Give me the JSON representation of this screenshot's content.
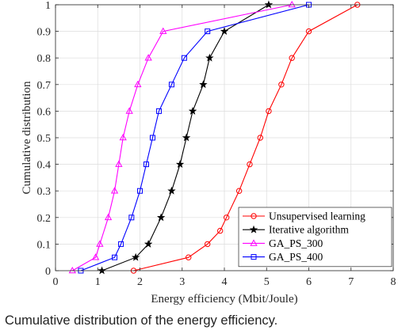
{
  "chart_data": {
    "type": "line",
    "xlabel": "Energy efficiency (Mbit/Joule)",
    "ylabel": "Cumulative distribution",
    "xlim": [
      0,
      8
    ],
    "ylim": [
      0,
      1
    ],
    "xticks": [
      "0",
      "1",
      "2",
      "3",
      "4",
      "5",
      "6",
      "7",
      "8"
    ],
    "yticks": [
      "0",
      "0.1",
      "0.2",
      "0.3",
      "0.4",
      "0.5",
      "0.6",
      "0.7",
      "0.8",
      "0.9",
      "1"
    ],
    "grid": true,
    "legend_position": "bottom-right",
    "series": [
      {
        "name": "Unsupervised learning",
        "color": "#ff0000",
        "marker": "circle",
        "points": [
          [
            1.85,
            0
          ],
          [
            3.15,
            0.05
          ],
          [
            3.6,
            0.1
          ],
          [
            3.9,
            0.15
          ],
          [
            4.05,
            0.2
          ],
          [
            4.35,
            0.3
          ],
          [
            4.6,
            0.4
          ],
          [
            4.85,
            0.5
          ],
          [
            5.05,
            0.6
          ],
          [
            5.35,
            0.7
          ],
          [
            5.6,
            0.8
          ],
          [
            6.0,
            0.9
          ],
          [
            7.15,
            1.0
          ]
        ]
      },
      {
        "name": "Iterative algorithm",
        "color": "#000000",
        "marker": "star",
        "points": [
          [
            1.1,
            0
          ],
          [
            1.9,
            0.05
          ],
          [
            2.2,
            0.1
          ],
          [
            2.5,
            0.2
          ],
          [
            2.75,
            0.3
          ],
          [
            2.95,
            0.4
          ],
          [
            3.1,
            0.5
          ],
          [
            3.25,
            0.6
          ],
          [
            3.5,
            0.7
          ],
          [
            3.65,
            0.8
          ],
          [
            4.0,
            0.9
          ],
          [
            5.05,
            1.0
          ]
        ]
      },
      {
        "name": "GA_PS_300",
        "color": "#ff00ff",
        "marker": "triangle",
        "points": [
          [
            0.4,
            0
          ],
          [
            0.95,
            0.05
          ],
          [
            1.05,
            0.1
          ],
          [
            1.25,
            0.2
          ],
          [
            1.4,
            0.3
          ],
          [
            1.5,
            0.4
          ],
          [
            1.6,
            0.5
          ],
          [
            1.75,
            0.6
          ],
          [
            1.95,
            0.7
          ],
          [
            2.2,
            0.8
          ],
          [
            2.55,
            0.9
          ],
          [
            5.6,
            1.0
          ]
        ]
      },
      {
        "name": "GA_PS_400",
        "color": "#0000ff",
        "marker": "square",
        "points": [
          [
            0.6,
            0
          ],
          [
            1.4,
            0.05
          ],
          [
            1.55,
            0.1
          ],
          [
            1.8,
            0.2
          ],
          [
            2.0,
            0.3
          ],
          [
            2.15,
            0.4
          ],
          [
            2.3,
            0.5
          ],
          [
            2.45,
            0.6
          ],
          [
            2.75,
            0.7
          ],
          [
            3.05,
            0.8
          ],
          [
            3.6,
            0.9
          ],
          [
            6.0,
            1.0
          ]
        ]
      }
    ]
  },
  "caption": "Cumulative distribution of the energy efficiency."
}
